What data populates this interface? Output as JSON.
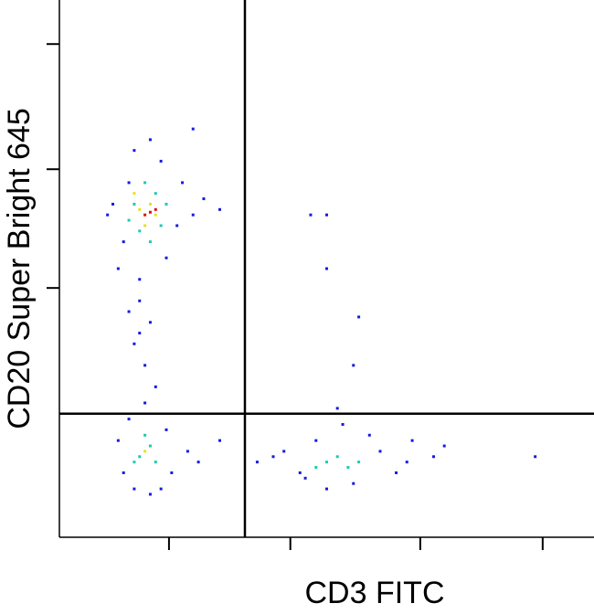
{
  "chart_data": {
    "type": "scatter",
    "xlabel": "CD3 FITC",
    "ylabel": "CD20 Super Bright 645",
    "xlim": [
      0,
      100
    ],
    "ylim": [
      0,
      100
    ],
    "xticks": [
      20.5,
      43.2,
      67.5,
      90.4
    ],
    "yticks": [
      46.4,
      68.5,
      91.8
    ],
    "gates": {
      "x": 34.7,
      "y": 23
    },
    "series": [
      {
        "color": "#1a1adc",
        "x": [
          10,
          12,
          13,
          19,
          22,
          25,
          11,
          14,
          20,
          27,
          30,
          9,
          17,
          23,
          15,
          15,
          17,
          14,
          16,
          18,
          13,
          16,
          15,
          12,
          20,
          11,
          21,
          14,
          19,
          24,
          13,
          26,
          17,
          40,
          45,
          60,
          65,
          42,
          55,
          70,
          48,
          58,
          63,
          37,
          50,
          72,
          53,
          46,
          66,
          47,
          50,
          50,
          56,
          55,
          89,
          25,
          30,
          52
        ],
        "values": [
          62,
          55,
          66,
          70,
          58,
          60,
          50,
          72,
          52,
          63,
          61,
          60,
          74,
          66,
          48,
          44,
          40,
          36,
          32,
          28,
          42,
          25,
          38,
          12,
          20,
          18,
          12,
          9,
          9,
          16,
          22,
          14,
          8,
          15,
          12,
          16,
          14,
          16,
          10,
          15,
          18,
          19,
          12,
          14,
          9,
          17,
          21,
          11,
          18,
          60,
          60,
          50,
          41,
          32,
          15,
          76,
          18,
          24
        ]
      },
      {
        "color": "#20c8b0",
        "x": [
          14,
          18,
          15,
          19,
          13,
          17,
          16,
          20,
          15,
          17,
          14,
          18,
          16,
          50,
          54,
          48,
          52,
          56
        ],
        "values": [
          62,
          64,
          57,
          58,
          59,
          55,
          66,
          62,
          15,
          17,
          14,
          14,
          19,
          14,
          13,
          13,
          15,
          14
        ]
      },
      {
        "color": "#e8e020",
        "x": [
          15,
          17,
          16,
          14,
          18,
          16
        ],
        "values": [
          61,
          62,
          58,
          64,
          60,
          16
        ]
      },
      {
        "color": "#e01010",
        "x": [
          16,
          17,
          18
        ],
        "values": [
          60,
          60.5,
          61
        ]
      }
    ]
  }
}
